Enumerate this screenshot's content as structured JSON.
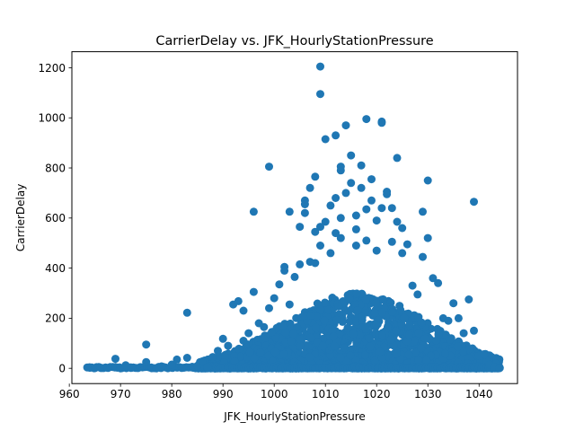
{
  "chart_data": {
    "type": "scatter",
    "title": "CarrierDelay vs. JFK_HourlyStationPressure",
    "xlabel": "JFK_HourlyStationPressure",
    "ylabel": "CarrierDelay",
    "xlim": [
      960.5,
      1047.5
    ],
    "ylim": [
      -61,
      1264
    ],
    "xticks": [
      960,
      970,
      980,
      990,
      1000,
      1010,
      1020,
      1030,
      1040
    ],
    "yticks": [
      0,
      200,
      400,
      600,
      800,
      1000,
      1200
    ],
    "xtick_labels": [
      "960",
      "970",
      "980",
      "990",
      "1000",
      "1010",
      "1020",
      "1030",
      "1040"
    ],
    "ytick_labels": [
      "0",
      "200",
      "400",
      "600",
      "800",
      "1000",
      "1200"
    ],
    "grid": false,
    "legend": false,
    "marker_color": "#1f77b4",
    "series": [
      {
        "points": [
          [
            964,
            2
          ],
          [
            965,
            1
          ],
          [
            966,
            3
          ],
          [
            969,
            38
          ],
          [
            969,
            5
          ],
          [
            970,
            0
          ],
          [
            971,
            12
          ],
          [
            972,
            4
          ],
          [
            975,
            95
          ],
          [
            975,
            25
          ],
          [
            976,
            3
          ],
          [
            977,
            0
          ],
          [
            978,
            8
          ],
          [
            980,
            15
          ],
          [
            981,
            35
          ],
          [
            982,
            2
          ],
          [
            983,
            222
          ],
          [
            983,
            42
          ],
          [
            984,
            6
          ],
          [
            985,
            10
          ],
          [
            986,
            28
          ],
          [
            987,
            5
          ],
          [
            988,
            45
          ],
          [
            989,
            70
          ],
          [
            990,
            118
          ],
          [
            991,
            90
          ],
          [
            992,
            255
          ],
          [
            993,
            268
          ],
          [
            994,
            230
          ],
          [
            994,
            110
          ],
          [
            995,
            140
          ],
          [
            996,
            625
          ],
          [
            996,
            305
          ],
          [
            997,
            180
          ],
          [
            998,
            165
          ],
          [
            999,
            240
          ],
          [
            999,
            805
          ],
          [
            1000,
            280
          ],
          [
            1001,
            335
          ],
          [
            1002,
            390
          ],
          [
            1002,
            405
          ],
          [
            1003,
            625
          ],
          [
            1003,
            255
          ],
          [
            1004,
            365
          ],
          [
            1005,
            565
          ],
          [
            1005,
            415
          ],
          [
            1006,
            620
          ],
          [
            1006,
            670
          ],
          [
            1006,
            655
          ],
          [
            1007,
            720
          ],
          [
            1007,
            425
          ],
          [
            1008,
            765
          ],
          [
            1008,
            545
          ],
          [
            1008,
            420
          ],
          [
            1009,
            490
          ],
          [
            1009,
            565
          ],
          [
            1009,
            1205
          ],
          [
            1009,
            1095
          ],
          [
            1010,
            585
          ],
          [
            1010,
            915
          ],
          [
            1011,
            460
          ],
          [
            1011,
            650
          ],
          [
            1012,
            930
          ],
          [
            1012,
            540
          ],
          [
            1012,
            680
          ],
          [
            1013,
            600
          ],
          [
            1013,
            520
          ],
          [
            1013,
            790
          ],
          [
            1013,
            805
          ],
          [
            1014,
            970
          ],
          [
            1014,
            700
          ],
          [
            1015,
            740
          ],
          [
            1015,
            850
          ],
          [
            1016,
            610
          ],
          [
            1016,
            555
          ],
          [
            1016,
            490
          ],
          [
            1017,
            810
          ],
          [
            1017,
            720
          ],
          [
            1018,
            635
          ],
          [
            1018,
            995
          ],
          [
            1018,
            510
          ],
          [
            1019,
            670
          ],
          [
            1019,
            755
          ],
          [
            1020,
            590
          ],
          [
            1020,
            470
          ],
          [
            1021,
            985
          ],
          [
            1021,
            980
          ],
          [
            1021,
            640
          ],
          [
            1022,
            695
          ],
          [
            1022,
            705
          ],
          [
            1023,
            640
          ],
          [
            1023,
            505
          ],
          [
            1024,
            840
          ],
          [
            1024,
            585
          ],
          [
            1025,
            560
          ],
          [
            1025,
            460
          ],
          [
            1026,
            495
          ],
          [
            1027,
            330
          ],
          [
            1028,
            295
          ],
          [
            1029,
            625
          ],
          [
            1029,
            445
          ],
          [
            1030,
            750
          ],
          [
            1030,
            520
          ],
          [
            1031,
            360
          ],
          [
            1032,
            340
          ],
          [
            1033,
            200
          ],
          [
            1034,
            190
          ],
          [
            1035,
            260
          ],
          [
            1036,
            200
          ],
          [
            1037,
            140
          ],
          [
            1038,
            275
          ],
          [
            1039,
            665
          ],
          [
            1039,
            150
          ],
          [
            1040,
            50
          ],
          [
            1041,
            55
          ],
          [
            1042,
            15
          ],
          [
            1043,
            5
          ],
          [
            1044,
            2
          ]
        ]
      }
    ]
  }
}
